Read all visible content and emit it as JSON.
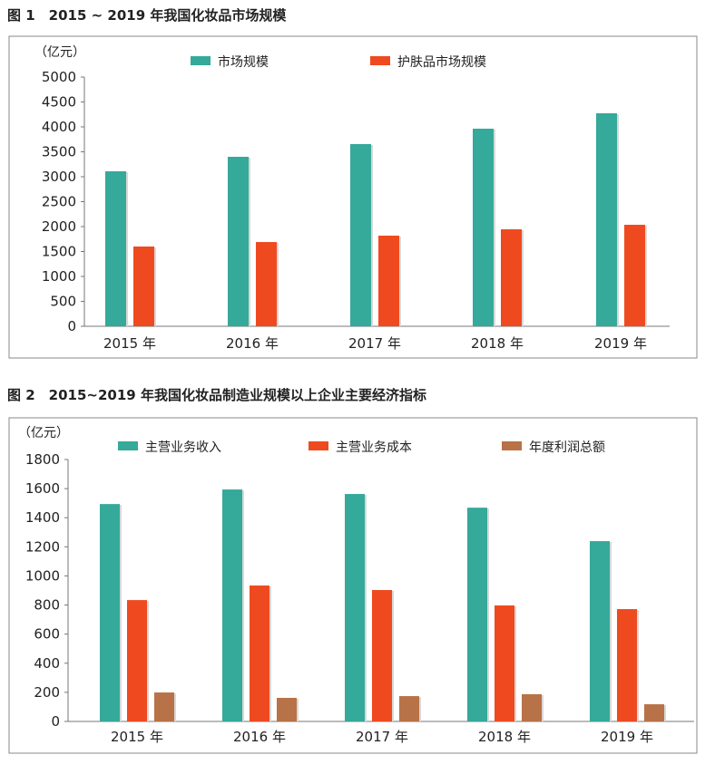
{
  "chart_data": [
    {
      "type": "bar",
      "title": "图 1　2015 ~ 2019 年我国化妆品市场规模",
      "ylabel": "（亿元）",
      "categories": [
        "2015 年",
        "2016 年",
        "2017 年",
        "2018 年",
        "2019 年"
      ],
      "yticks": [
        "0",
        "500",
        "1000",
        "1500",
        "2000",
        "2500",
        "3000",
        "3500",
        "4000",
        "4500",
        "5000"
      ],
      "ylim": [
        0,
        5000
      ],
      "legend_position": "top",
      "series": [
        {
          "name": "市场规模",
          "color": "#35a99a",
          "values": [
            3109,
            3400,
            3655,
            3964,
            4273
          ]
        },
        {
          "name": "护肤品市场规模",
          "color": "#ef4a1f",
          "values": [
            1600,
            1690,
            1818,
            1945,
            2036
          ]
        }
      ]
    },
    {
      "type": "bar",
      "title": "图 2　2015~2019 年我国化妆品制造业规模以上企业主要经济指标",
      "ylabel": "（亿元）",
      "categories": [
        "2015 年",
        "2016 年",
        "2017 年",
        "2018 年",
        "2019 年"
      ],
      "yticks": [
        "0",
        "200",
        "400",
        "600",
        "800",
        "1000",
        "1200",
        "1400",
        "1600",
        "1800"
      ],
      "ylim": [
        0,
        1800
      ],
      "legend_position": "top",
      "series": [
        {
          "name": "主营业务收入",
          "color": "#35a99a",
          "values": [
            1494,
            1594,
            1563,
            1469,
            1239
          ]
        },
        {
          "name": "主营业务成本",
          "color": "#ef4a1f",
          "values": [
            834,
            934,
            903,
            797,
            772
          ]
        },
        {
          "name": "年度利润总额",
          "color": "#b87247",
          "values": [
            199,
            162,
            174,
            187,
            118
          ]
        }
      ]
    }
  ]
}
